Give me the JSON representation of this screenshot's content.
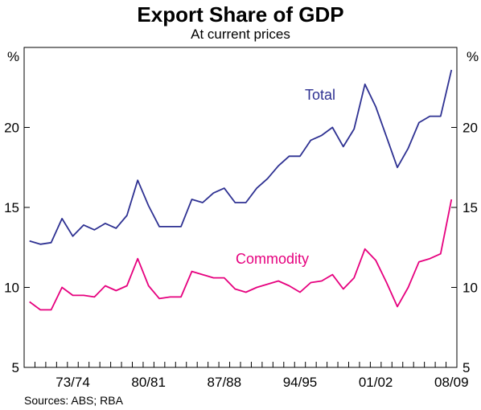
{
  "chart_data": {
    "type": "line",
    "title": "Export Share of GDP",
    "subtitle": "At current prices",
    "ylabel_left": "%",
    "ylabel_right": "%",
    "ylim": [
      5,
      25
    ],
    "yticks": [
      5,
      10,
      15,
      20
    ],
    "x": [
      "1969/70",
      "1970/71",
      "1971/72",
      "1972/73",
      "1973/74",
      "1974/75",
      "1975/76",
      "1976/77",
      "1977/78",
      "1978/79",
      "1979/80",
      "1980/81",
      "1981/82",
      "1982/83",
      "1983/84",
      "1984/85",
      "1985/86",
      "1986/87",
      "1987/88",
      "1988/89",
      "1989/90",
      "1990/91",
      "1991/92",
      "1992/93",
      "1993/94",
      "1994/95",
      "1995/96",
      "1996/97",
      "1997/98",
      "1998/99",
      "1999/00",
      "2000/01",
      "2001/02",
      "2002/03",
      "2003/04",
      "2004/05",
      "2005/06",
      "2006/07",
      "2007/08",
      "2008/09"
    ],
    "xtick_labels": [
      "73/74",
      "80/81",
      "87/88",
      "94/95",
      "01/02",
      "08/09"
    ],
    "grid": false,
    "series": [
      {
        "name": "Total",
        "color": "#2e3192",
        "values": [
          12.9,
          12.7,
          12.8,
          14.3,
          13.2,
          13.9,
          13.6,
          14.0,
          13.7,
          14.5,
          16.7,
          15.1,
          13.8,
          13.8,
          13.8,
          15.5,
          15.3,
          15.9,
          16.2,
          15.3,
          15.3,
          16.2,
          16.8,
          17.6,
          18.2,
          18.2,
          19.2,
          19.5,
          20.0,
          18.8,
          19.9,
          22.7,
          21.3,
          19.4,
          17.5,
          18.7,
          20.3,
          20.7,
          20.7,
          23.6
        ]
      },
      {
        "name": "Commodity",
        "color": "#e6007e",
        "values": [
          9.1,
          8.6,
          8.6,
          10.0,
          9.5,
          9.5,
          9.4,
          10.1,
          9.8,
          10.1,
          11.8,
          10.1,
          9.3,
          9.4,
          9.4,
          11.0,
          10.8,
          10.6,
          10.6,
          9.9,
          9.7,
          10.0,
          10.2,
          10.4,
          10.1,
          9.7,
          10.3,
          10.4,
          10.8,
          9.9,
          10.6,
          12.4,
          11.7,
          10.3,
          8.8,
          10.0,
          11.6,
          11.8,
          12.1,
          15.5
        ]
      }
    ]
  },
  "footer": {
    "source": "Sources: ABS; RBA"
  }
}
